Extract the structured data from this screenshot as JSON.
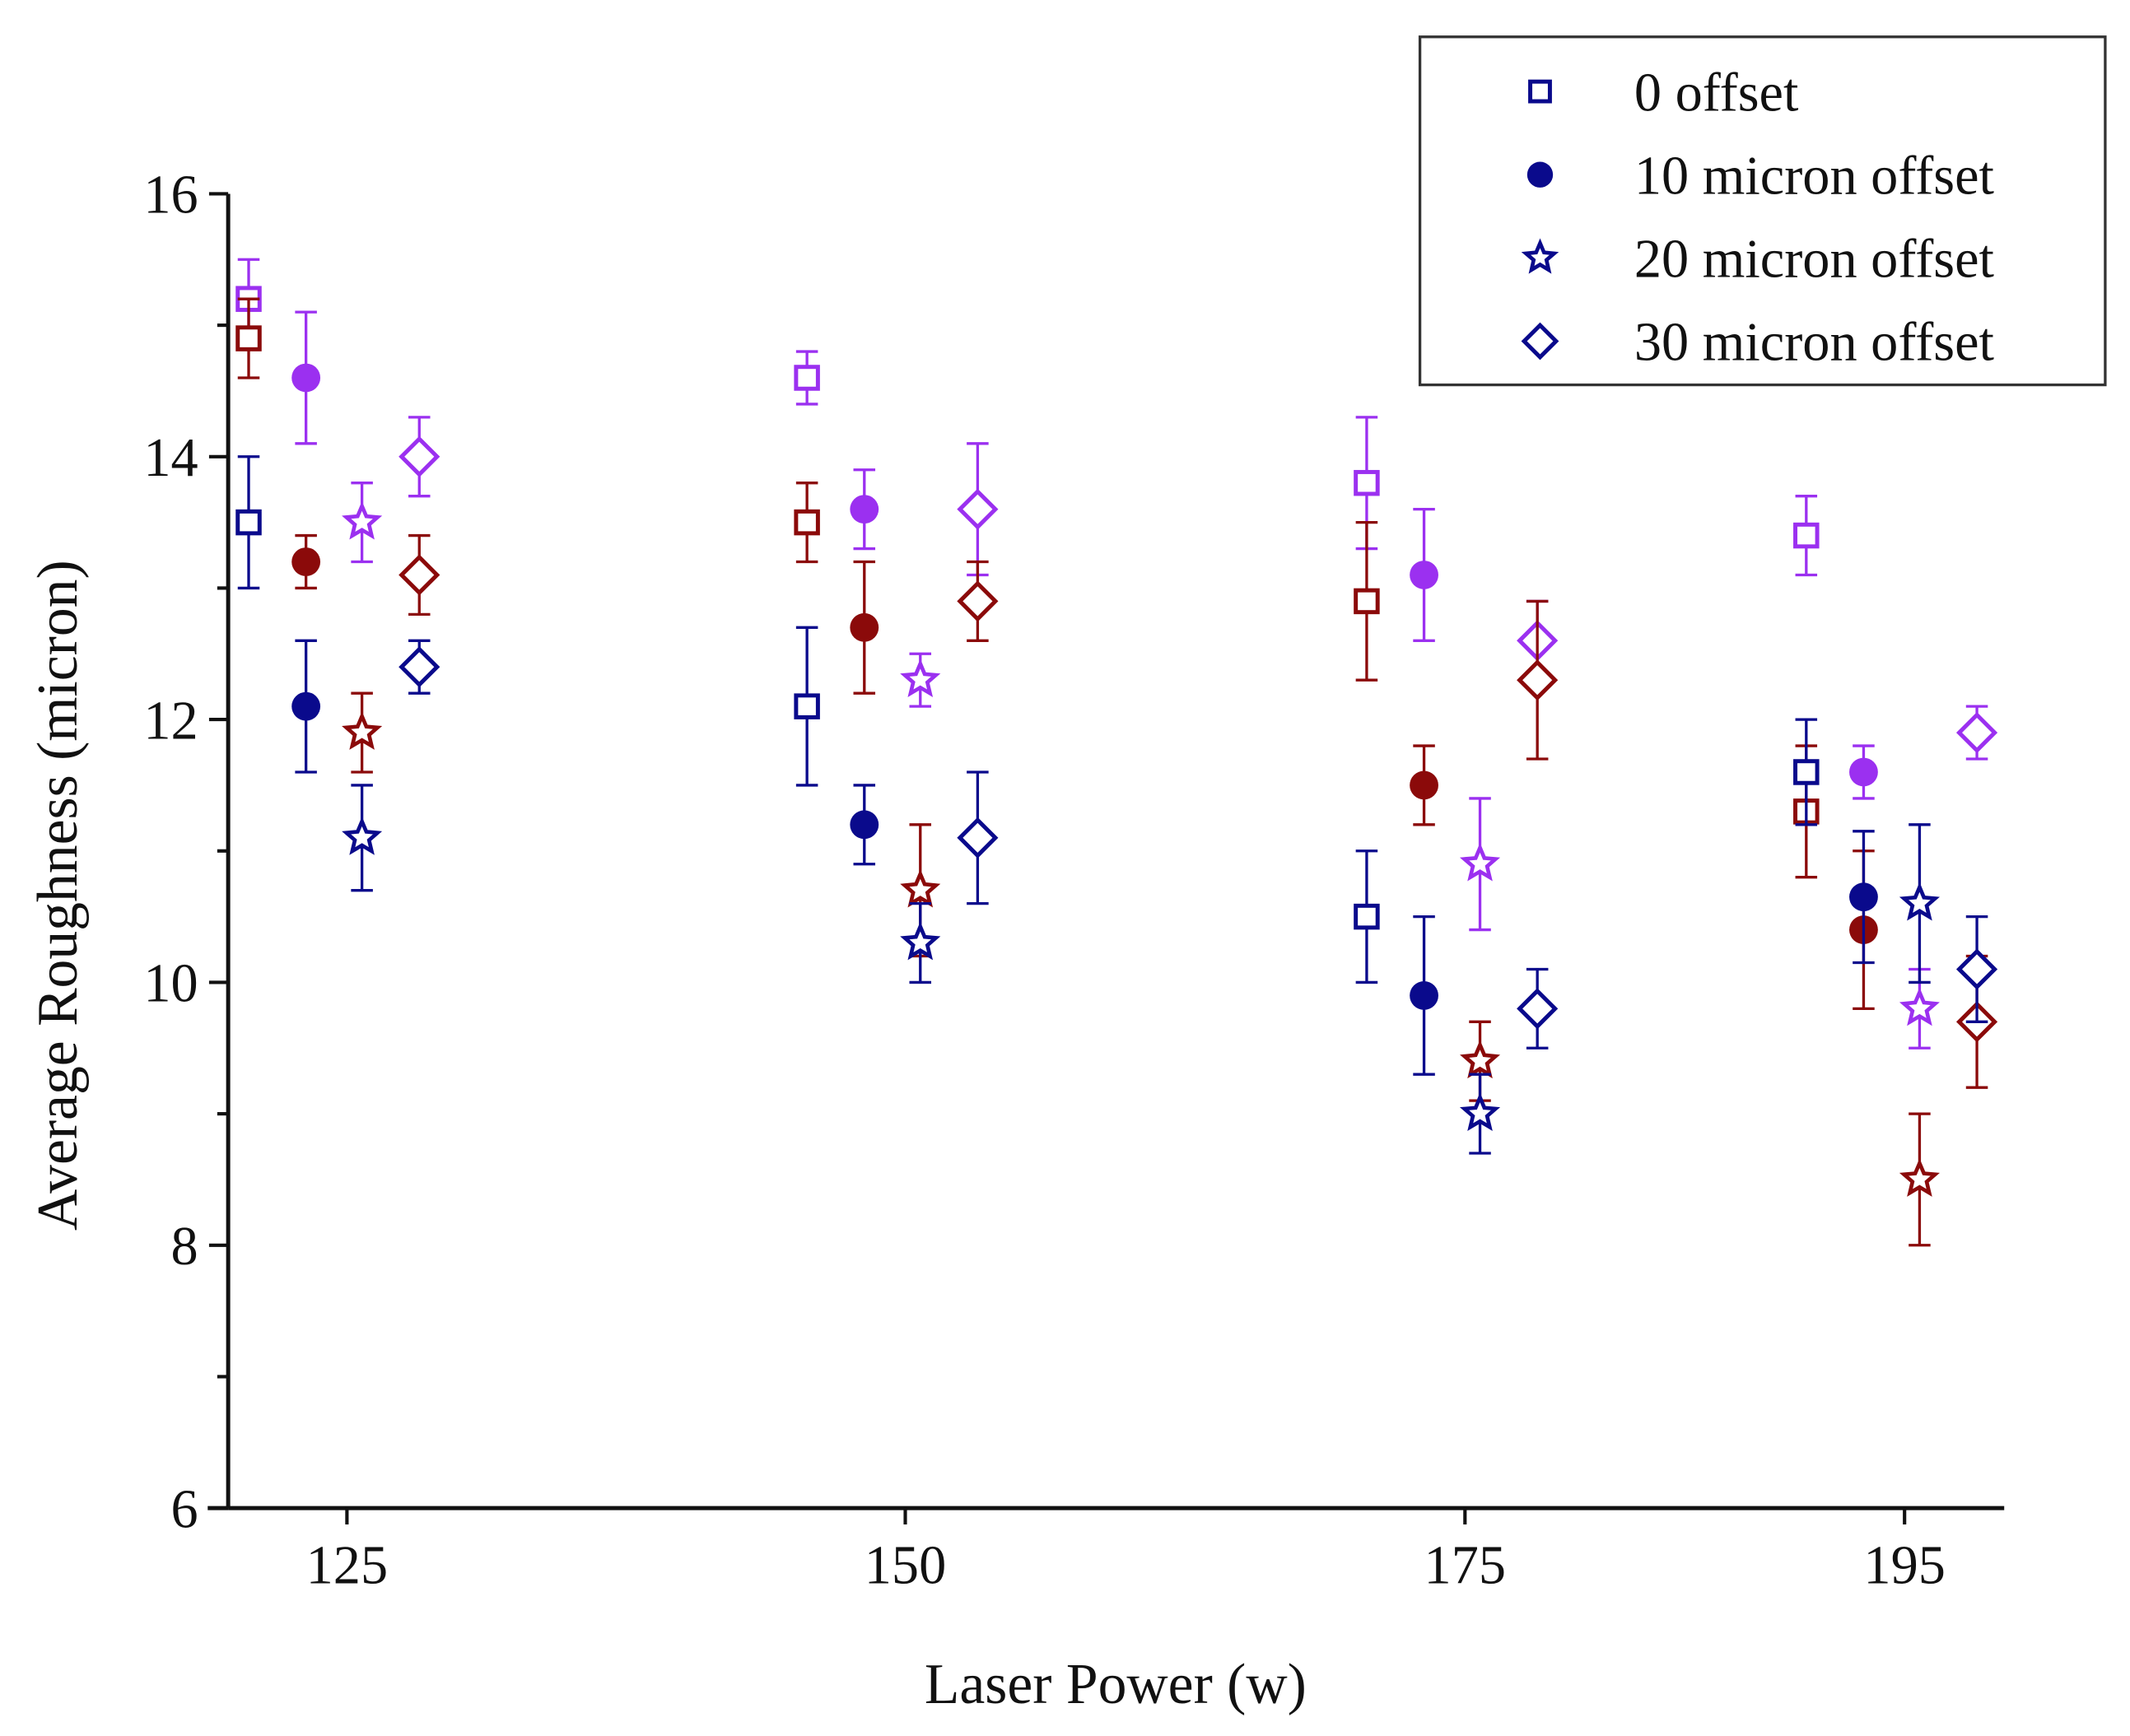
{
  "chart_data": {
    "type": "scatter",
    "xlabel": "Laser Power (w)",
    "ylabel": "Average Roughness (micron)",
    "categories": [
      "125",
      "150",
      "175",
      "195"
    ],
    "ylim": [
      6,
      16
    ],
    "yticks": [
      6,
      8,
      10,
      12,
      14,
      16
    ],
    "grid": false,
    "legend_position": "top-right",
    "error_bars": true,
    "colors": {
      "purple": "#9b30f0",
      "darkred": "#8b0a0a",
      "navy": "#0a0a8c"
    },
    "series": [
      {
        "name": "0 offset",
        "marker": "square-open",
        "points": [
          {
            "x": "125",
            "color": "purple",
            "y": 15.2,
            "err": 0.3
          },
          {
            "x": "125",
            "color": "darkred",
            "y": 14.9,
            "err": 0.3
          },
          {
            "x": "125",
            "color": "navy",
            "y": 13.5,
            "err": 0.5
          },
          {
            "x": "150",
            "color": "purple",
            "y": 14.6,
            "err": 0.2
          },
          {
            "x": "150",
            "color": "darkred",
            "y": 13.5,
            "err": 0.3
          },
          {
            "x": "150",
            "color": "navy",
            "y": 12.1,
            "err": 0.6
          },
          {
            "x": "175",
            "color": "purple",
            "y": 13.8,
            "err": 0.5
          },
          {
            "x": "175",
            "color": "darkred",
            "y": 12.9,
            "err": 0.6
          },
          {
            "x": "175",
            "color": "navy",
            "y": 10.5,
            "err": 0.5
          },
          {
            "x": "195",
            "color": "purple",
            "y": 13.4,
            "err": 0.3
          },
          {
            "x": "195",
            "color": "darkred",
            "y": 11.3,
            "err": 0.5
          },
          {
            "x": "195",
            "color": "navy",
            "y": 11.6,
            "err": 0.4
          }
        ]
      },
      {
        "name": "10 micron offset",
        "marker": "circle-filled",
        "points": [
          {
            "x": "125",
            "color": "purple",
            "y": 14.6,
            "err": 0.5
          },
          {
            "x": "125",
            "color": "darkred",
            "y": 13.2,
            "err": 0.2
          },
          {
            "x": "125",
            "color": "navy",
            "y": 12.1,
            "err": 0.5
          },
          {
            "x": "150",
            "color": "purple",
            "y": 13.6,
            "err": 0.3
          },
          {
            "x": "150",
            "color": "darkred",
            "y": 12.7,
            "err": 0.5
          },
          {
            "x": "150",
            "color": "navy",
            "y": 11.2,
            "err": 0.3
          },
          {
            "x": "175",
            "color": "purple",
            "y": 13.1,
            "err": 0.5
          },
          {
            "x": "175",
            "color": "darkred",
            "y": 11.5,
            "err": 0.3
          },
          {
            "x": "175",
            "color": "navy",
            "y": 9.9,
            "err": 0.6
          },
          {
            "x": "195",
            "color": "purple",
            "y": 11.6,
            "err": 0.2
          },
          {
            "x": "195",
            "color": "darkred",
            "y": 10.4,
            "err": 0.6
          },
          {
            "x": "195",
            "color": "navy",
            "y": 10.65,
            "err": 0.5
          }
        ]
      },
      {
        "name": "20 micron offset",
        "marker": "star-open",
        "points": [
          {
            "x": "125",
            "color": "purple",
            "y": 13.5,
            "err": 0.3
          },
          {
            "x": "125",
            "color": "darkred",
            "y": 11.9,
            "err": 0.3
          },
          {
            "x": "125",
            "color": "navy",
            "y": 11.1,
            "err": 0.4
          },
          {
            "x": "150",
            "color": "purple",
            "y": 12.3,
            "err": 0.2
          },
          {
            "x": "150",
            "color": "darkred",
            "y": 10.7,
            "err": 0.5
          },
          {
            "x": "150",
            "color": "navy",
            "y": 10.3,
            "err": 0.3
          },
          {
            "x": "175",
            "color": "purple",
            "y": 10.9,
            "err": 0.5
          },
          {
            "x": "175",
            "color": "darkred",
            "y": 9.4,
            "err": 0.3
          },
          {
            "x": "175",
            "color": "navy",
            "y": 9.0,
            "err": 0.3
          },
          {
            "x": "195",
            "color": "purple",
            "y": 9.8,
            "err": 0.3
          },
          {
            "x": "195",
            "color": "darkred",
            "y": 8.5,
            "err": 0.5
          },
          {
            "x": "195",
            "color": "navy",
            "y": 10.6,
            "err": 0.6
          }
        ]
      },
      {
        "name": "30 micron offset",
        "marker": "diamond-open",
        "points": [
          {
            "x": "125",
            "color": "purple",
            "y": 14.0,
            "err": 0.3
          },
          {
            "x": "125",
            "color": "darkred",
            "y": 13.1,
            "err": 0.3
          },
          {
            "x": "125",
            "color": "navy",
            "y": 12.4,
            "err": 0.2
          },
          {
            "x": "150",
            "color": "purple",
            "y": 13.6,
            "err": 0.5
          },
          {
            "x": "150",
            "color": "darkred",
            "y": 12.9,
            "err": 0.3
          },
          {
            "x": "150",
            "color": "navy",
            "y": 11.1,
            "err": 0.5
          },
          {
            "x": "175",
            "color": "purple",
            "y": 12.6,
            "err": 0.3
          },
          {
            "x": "175",
            "color": "darkred",
            "y": 12.3,
            "err": 0.6
          },
          {
            "x": "175",
            "color": "navy",
            "y": 9.8,
            "err": 0.3
          },
          {
            "x": "195",
            "color": "purple",
            "y": 11.9,
            "err": 0.2
          },
          {
            "x": "195",
            "color": "darkred",
            "y": 9.7,
            "err": 0.5
          },
          {
            "x": "195",
            "color": "navy",
            "y": 10.1,
            "err": 0.4
          }
        ]
      }
    ]
  }
}
